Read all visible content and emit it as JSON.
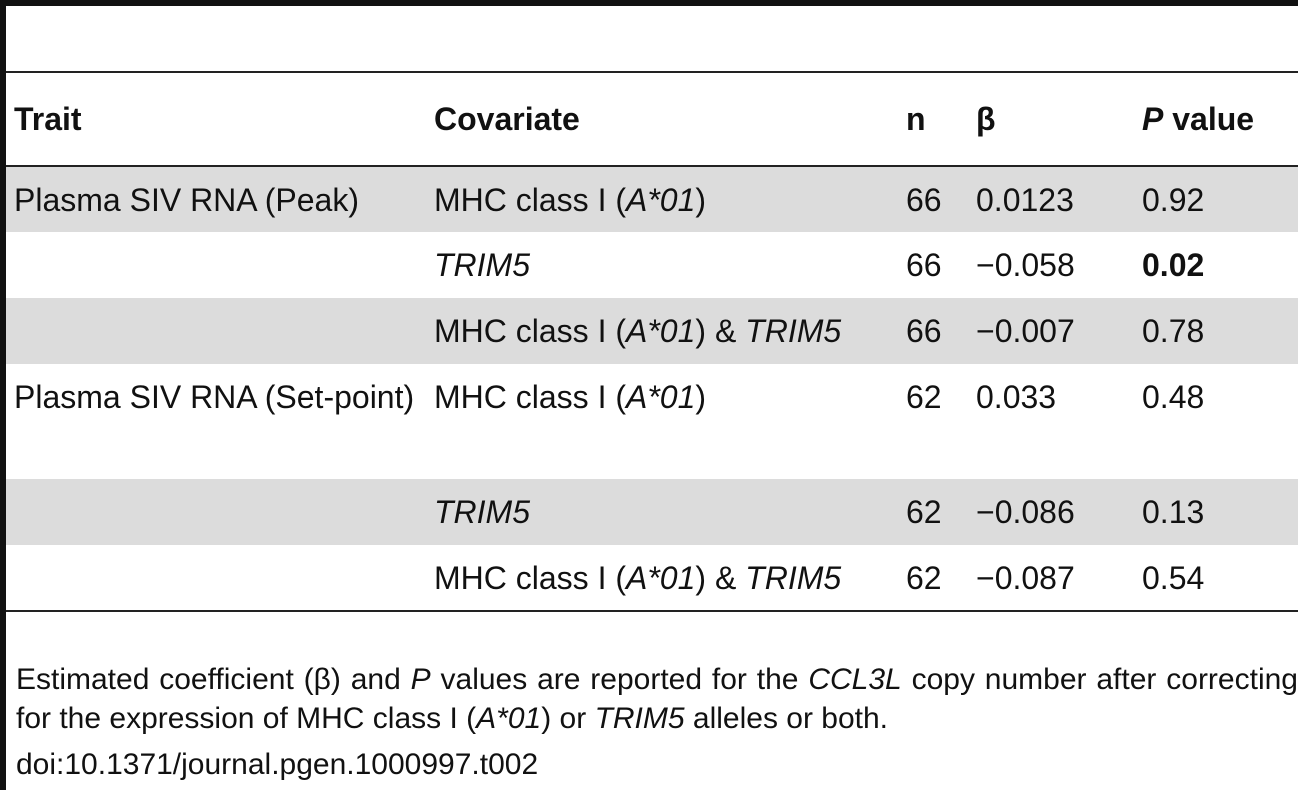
{
  "table": {
    "headers": {
      "trait": "Trait",
      "covariate": "Covariate",
      "n": "n",
      "beta": "β",
      "p_italic": "P",
      "p_rest": " value"
    },
    "rows": [
      {
        "trait": "Plasma SIV RNA (Peak)",
        "cov_pre": "MHC class I (",
        "cov_allele": "A*01",
        "cov_post": ")",
        "cov_trim": "",
        "n": "66",
        "beta": "0.0123",
        "p": "0.92",
        "p_bold": false
      },
      {
        "trait": "",
        "cov_pre": "",
        "cov_allele": "",
        "cov_post": "",
        "cov_trim": "TRIM5",
        "n": "66",
        "beta": "−0.058",
        "p": "0.02",
        "p_bold": true
      },
      {
        "trait": "",
        "cov_pre": "MHC class I (",
        "cov_allele": "A*01",
        "cov_post": ") & ",
        "cov_trim": "TRIM5",
        "n": "66",
        "beta": "−0.007",
        "p": "0.78",
        "p_bold": false
      },
      {
        "trait": "Plasma SIV RNA (Set-point)",
        "cov_pre": "MHC class I (",
        "cov_allele": "A*01",
        "cov_post": ")",
        "cov_trim": "",
        "n": "62",
        "beta": "0.033",
        "p": "0.48",
        "p_bold": false
      },
      {
        "trait": "",
        "cov_pre": "",
        "cov_allele": "",
        "cov_post": "",
        "cov_trim": "TRIM5",
        "n": "62",
        "beta": "−0.086",
        "p": "0.13",
        "p_bold": false
      },
      {
        "trait": "",
        "cov_pre": "MHC class I (",
        "cov_allele": "A*01",
        "cov_post": ") & ",
        "cov_trim": "TRIM5",
        "n": "62",
        "beta": "−0.087",
        "p": "0.54",
        "p_bold": false
      }
    ]
  },
  "footnote": {
    "s1": "Estimated coefficient (β) and ",
    "s2": "P",
    "s3": " values are reported for the ",
    "s4": "CCL3L",
    "s5": " copy number after correcting for the expression of MHC class I (",
    "s6": "A*01",
    "s7": ") or ",
    "s8": "TRIM5",
    "s9": " alleles or both."
  },
  "doi": "doi:10.1371/journal.pgen.1000997.t002"
}
